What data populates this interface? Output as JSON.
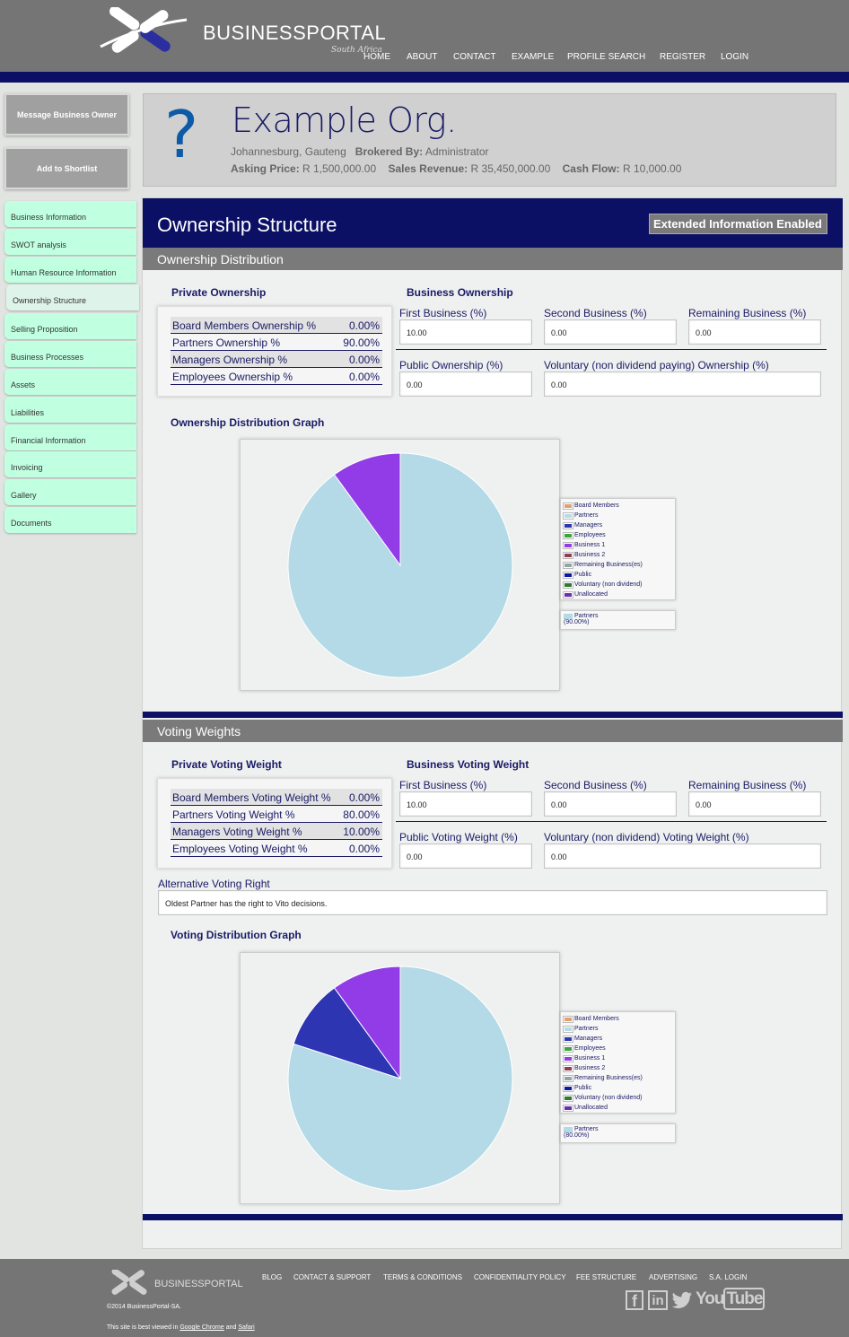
{
  "header": {
    "logo_main": "BUSINESS",
    "logo_bold": "PORTAL",
    "logo_sub": "South Africa",
    "nav": [
      "HOME",
      "ABOUT",
      "CONTACT",
      "EXAMPLE",
      "PROFILE SEARCH",
      "REGISTER",
      "LOGIN"
    ]
  },
  "sidebar": {
    "buttons": [
      "Message Business Owner",
      "Add to Shortlist"
    ],
    "items": [
      "Business Information",
      "SWOT analysis",
      "Human Resource Information",
      "Ownership Structure",
      "Selling Proposition",
      "Business Processes",
      "Assets",
      "Liabilities",
      "Financial Information",
      "Invoicing",
      "Gallery",
      "Documents"
    ],
    "active_index": 3
  },
  "card": {
    "icon": "question-mark-icon",
    "title": "Example Org.",
    "location": "Johannesburg, Gauteng",
    "brokered_label": "Brokered By:",
    "brokered_value": "Administrator",
    "asking_label": "Asking Price:",
    "asking_value": "R 1,500,000.00",
    "sales_label": "Sales Revenue:",
    "sales_value": "R 35,450,000.00",
    "cash_label": "Cash Flow:",
    "cash_value": "R 10,000.00"
  },
  "main": {
    "title": "Ownership Structure",
    "badge": "Extended Information Enabled"
  },
  "ownership": {
    "section_title": "Ownership Distribution",
    "private_title": "Private Ownership",
    "private_rows": [
      {
        "label": "Board Members Ownership %",
        "value": "0.00%"
      },
      {
        "label": "Partners Ownership %",
        "value": "90.00%"
      },
      {
        "label": "Managers Ownership %",
        "value": "0.00%"
      },
      {
        "label": "Employees Ownership %",
        "value": "0.00%"
      }
    ],
    "business_title": "Business Ownership",
    "fields": [
      {
        "label": "First Business (%)",
        "value": "10.00"
      },
      {
        "label": "Second Business (%)",
        "value": "0.00"
      },
      {
        "label": "Remaining Business (%)",
        "value": "0.00"
      },
      {
        "label": "Public Ownership (%)",
        "value": "0.00"
      },
      {
        "label": "Voluntary (non dividend paying) Ownership (%)",
        "value": "0.00"
      }
    ],
    "graph_title": "Ownership Distribution Graph",
    "legend_selected": "Partners",
    "legend_selected_value": "(90.00%)"
  },
  "voting": {
    "section_title": "Voting Weights",
    "private_title": "Private Voting Weight",
    "private_rows": [
      {
        "label": "Board Members Voting Weight %",
        "value": "0.00%"
      },
      {
        "label": "Partners Voting Weight %",
        "value": "80.00%"
      },
      {
        "label": "Managers Voting Weight %",
        "value": "10.00%"
      },
      {
        "label": "Employees Voting Weight %",
        "value": "0.00%"
      }
    ],
    "business_title": "Business Voting Weight",
    "fields": [
      {
        "label": "First Business (%)",
        "value": "10.00"
      },
      {
        "label": "Second Business (%)",
        "value": "0.00"
      },
      {
        "label": "Remaining Business (%)",
        "value": "0.00"
      },
      {
        "label": "Public Voting Weight (%)",
        "value": "0.00"
      },
      {
        "label": "Voluntary (non dividend) Voting Weight (%)",
        "value": "0.00"
      }
    ],
    "alt_label": "Alternative Voting Right",
    "alt_value": "Oldest Partner has the right to Vito decisions.",
    "graph_title": "Voting Distribution Graph",
    "legend_selected": "Partners",
    "legend_selected_value": "(80.00%)"
  },
  "legend_items": [
    {
      "name": "Board Members",
      "color": "#e0a070"
    },
    {
      "name": "Partners",
      "color": "#b3dae6"
    },
    {
      "name": "Managers",
      "color": "#2e35b3"
    },
    {
      "name": "Employees",
      "color": "#3aa63a"
    },
    {
      "name": "Business 1",
      "color": "#923ce8"
    },
    {
      "name": "Business 2",
      "color": "#8f3f4f"
    },
    {
      "name": "Remaining Business(es)",
      "color": "#8ea6a6"
    },
    {
      "name": "Public",
      "color": "#0c1a9e"
    },
    {
      "name": "Voluntary (non dividend)",
      "color": "#2e7a2e"
    },
    {
      "name": "Unallocated",
      "color": "#6a2fb0"
    }
  ],
  "chart_data": [
    {
      "type": "pie",
      "title": "Ownership Distribution Graph",
      "slices": [
        {
          "name": "Partners",
          "value": 90
        },
        {
          "name": "Business 1",
          "value": 10
        }
      ]
    },
    {
      "type": "pie",
      "title": "Voting Distribution Graph",
      "slices": [
        {
          "name": "Partners",
          "value": 80
        },
        {
          "name": "Managers",
          "value": 10
        },
        {
          "name": "Business 1",
          "value": 10
        }
      ]
    }
  ],
  "footer": {
    "logo_main": "BUSINESS",
    "logo_bold": "PORTAL",
    "links": [
      "BLOG",
      "CONTACT & SUPPORT",
      "TERMS & CONDITIONS",
      "CONFIDENTIALITY POLICY",
      "FEE STRUCTURE",
      "ADVERTISING",
      "S.A. LOGIN"
    ],
    "copyright": "©2014 BusinessPortal-SA.",
    "best_viewed": "This site is best viewed in",
    "browser1": "Google Chrome",
    "and": "and",
    "browser2": "Safari",
    "social_icons": [
      "facebook-icon",
      "linkedin-icon",
      "twitter-icon",
      "youtube-icon"
    ],
    "youtube_you": "You",
    "youtube_tube": "Tube"
  }
}
